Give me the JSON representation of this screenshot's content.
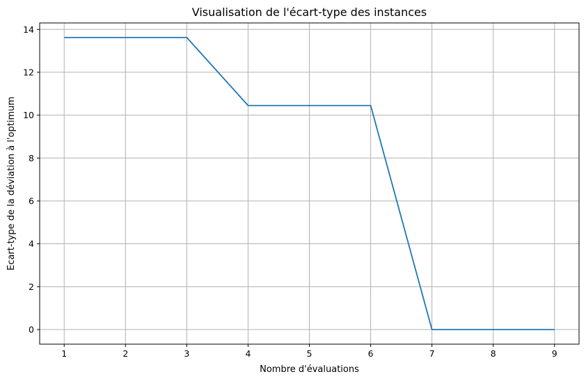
{
  "chart_data": {
    "type": "line",
    "title": "Visualisation de l'écart-type des instances",
    "xlabel": "Nombre d'évaluations",
    "ylabel": "Ecart-type de la déviation à l'optimum",
    "xlim": [
      0.6,
      9.4
    ],
    "ylim": [
      -0.68,
      14.3
    ],
    "xticks": [
      1,
      2,
      3,
      4,
      5,
      6,
      7,
      8,
      9
    ],
    "yticks": [
      0,
      2,
      4,
      6,
      8,
      10,
      12,
      14
    ],
    "grid": true,
    "series": [
      {
        "color": "#1f77b4",
        "x": [
          1,
          2,
          3,
          4,
          5,
          6,
          7,
          8,
          9
        ],
        "y": [
          13.62,
          13.62,
          13.62,
          10.45,
          10.45,
          10.45,
          0.0,
          0.0,
          0.0
        ]
      }
    ]
  }
}
